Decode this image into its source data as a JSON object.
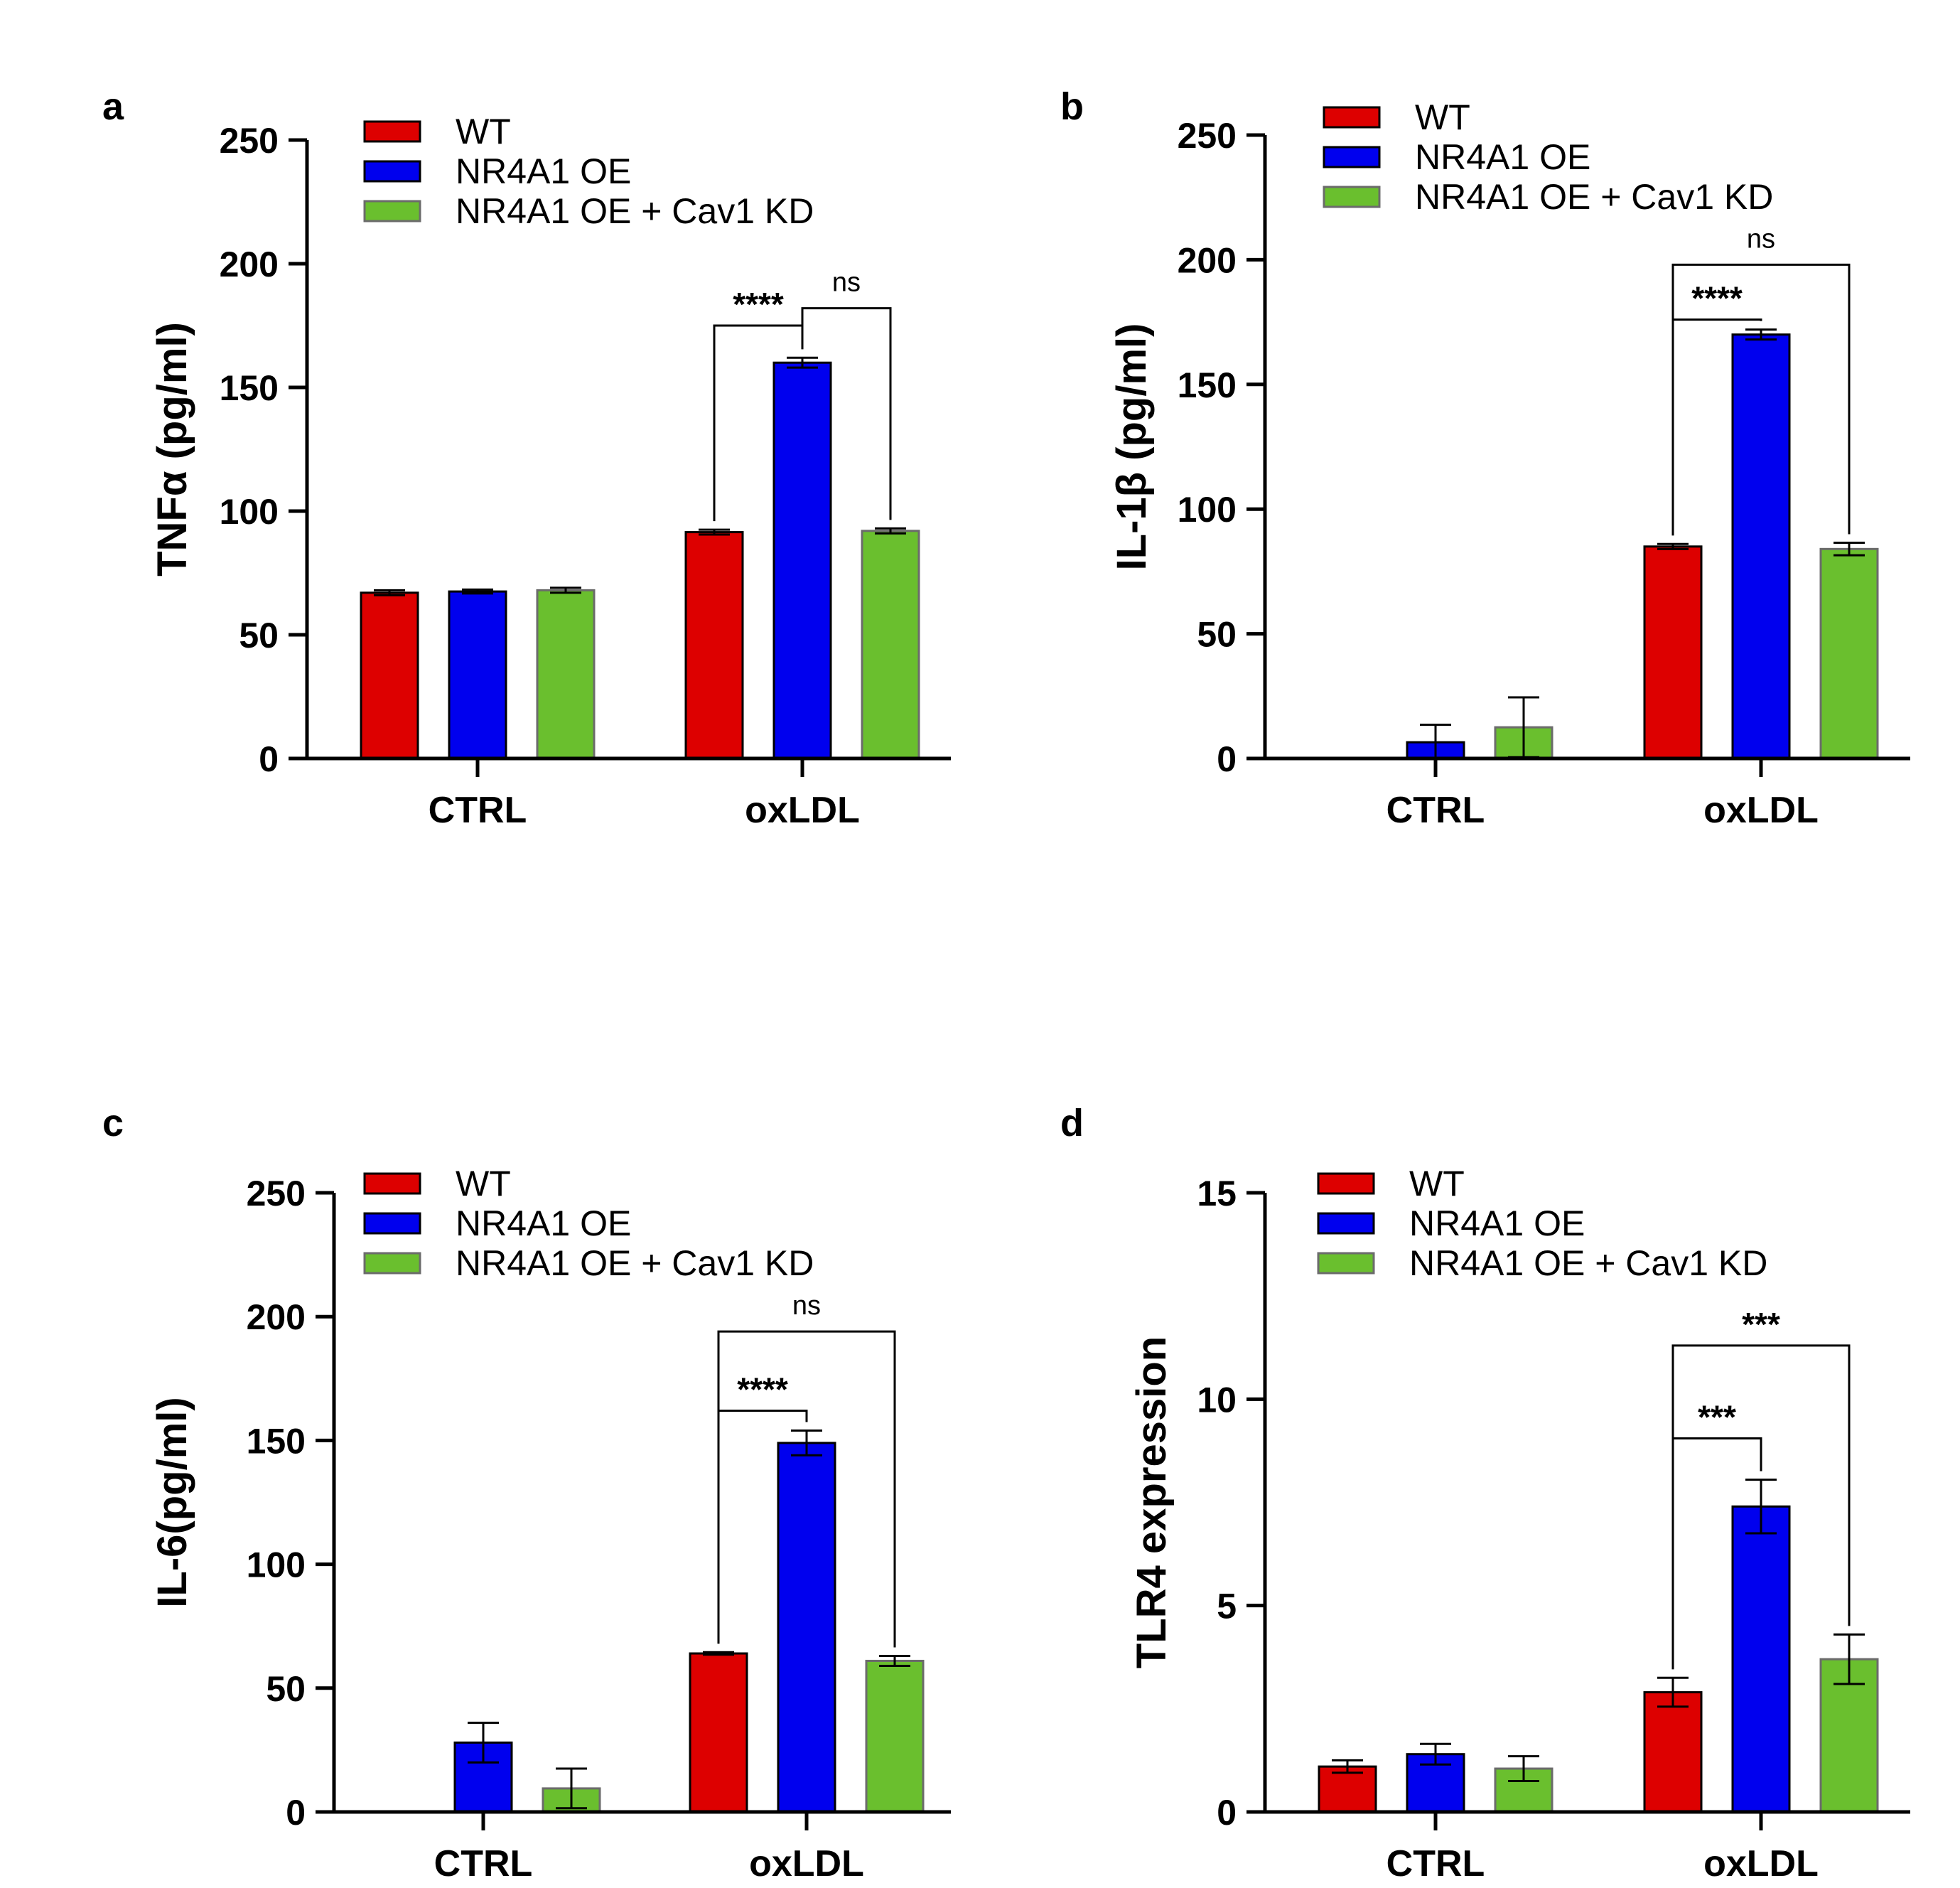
{
  "colors": {
    "wt": "#dd0000",
    "nr4a1_oe": "#0000ee",
    "nr4a1_oe_cav1_kd": "#6abf2e",
    "axis": "#000000"
  },
  "chart_data": [
    {
      "panel": "a",
      "type": "bar",
      "ylabel": "TNFα (pg/ml)",
      "ylim": [
        0,
        250
      ],
      "yticks": [
        0,
        50,
        100,
        150,
        200,
        250
      ],
      "categories": [
        "CTRL",
        "oxLDL"
      ],
      "legend": [
        "WT",
        "NR4A1 OE",
        "NR4A1 OE + Cav1 KD"
      ],
      "series": [
        {
          "name": "WT",
          "values": [
            67,
            91.5
          ],
          "errors": [
            1,
            1
          ]
        },
        {
          "name": "NR4A1 OE",
          "values": [
            67.5,
            160
          ],
          "errors": [
            0.8,
            2
          ]
        },
        {
          "name": "NR4A1 OE + Cav1 KD",
          "values": [
            68,
            92
          ],
          "errors": [
            1,
            1
          ]
        }
      ],
      "annotations": [
        {
          "from": 0,
          "to": 1,
          "label": "****",
          "level": 175
        },
        {
          "from": 1,
          "to": 2,
          "label": "ns",
          "level": 182
        }
      ]
    },
    {
      "panel": "b",
      "type": "bar",
      "ylabel": "IL-1β (pg/ml)",
      "ylim": [
        0,
        250
      ],
      "yticks": [
        0,
        50,
        100,
        150,
        200,
        250
      ],
      "categories": [
        "CTRL",
        "oxLDL"
      ],
      "legend": [
        "WT",
        "NR4A1 OE",
        "NR4A1 OE + Cav1 KD"
      ],
      "series": [
        {
          "name": "WT",
          "values": [
            0,
            85
          ],
          "errors": [
            0,
            1
          ]
        },
        {
          "name": "NR4A1 OE",
          "values": [
            6.5,
            170
          ],
          "errors": [
            7,
            2
          ]
        },
        {
          "name": "NR4A1 OE + Cav1 KD",
          "values": [
            12.5,
            84
          ],
          "errors": [
            12,
            2.5
          ]
        }
      ],
      "annotations": [
        {
          "from": 0,
          "to": 1,
          "label": "****",
          "level": 176
        },
        {
          "from": 0,
          "to": 2,
          "label": "ns",
          "level": 198
        }
      ]
    },
    {
      "panel": "c",
      "type": "bar",
      "ylabel": "IL-6(pg/ml)",
      "ylim": [
        0,
        250
      ],
      "yticks": [
        0,
        50,
        100,
        150,
        200,
        250
      ],
      "categories": [
        "CTRL",
        "oxLDL"
      ],
      "legend": [
        "WT",
        "NR4A1 OE",
        "NR4A1 OE + Cav1 KD"
      ],
      "series": [
        {
          "name": "WT",
          "values": [
            0,
            64
          ],
          "errors": [
            0,
            0.5
          ]
        },
        {
          "name": "NR4A1 OE",
          "values": [
            28,
            149
          ],
          "errors": [
            8,
            5
          ]
        },
        {
          "name": "NR4A1 OE + Cav1 KD",
          "values": [
            9.5,
            61
          ],
          "errors": [
            8,
            2
          ]
        }
      ],
      "annotations": [
        {
          "from": 0,
          "to": 1,
          "label": "****",
          "level": 162
        },
        {
          "from": 0,
          "to": 2,
          "label": "ns",
          "level": 194
        }
      ]
    },
    {
      "panel": "d",
      "type": "bar",
      "ylabel": "TLR4 expression",
      "ylim": [
        0,
        15
      ],
      "yticks": [
        0,
        5,
        10,
        15
      ],
      "categories": [
        "CTRL",
        "oxLDL"
      ],
      "legend": [
        "WT",
        "NR4A1 OE",
        "NR4A1 OE + Cav1 KD"
      ],
      "series": [
        {
          "name": "WT",
          "values": [
            1.1,
            2.9
          ],
          "errors": [
            0.15,
            0.35
          ]
        },
        {
          "name": "NR4A1 OE",
          "values": [
            1.4,
            7.4
          ],
          "errors": [
            0.25,
            0.65
          ]
        },
        {
          "name": "NR4A1 OE + Cav1 KD",
          "values": [
            1.05,
            3.7
          ],
          "errors": [
            0.3,
            0.6
          ]
        }
      ],
      "annotations": [
        {
          "from": 0,
          "to": 1,
          "label": "***",
          "level": 9.05
        },
        {
          "from": 0,
          "to": 2,
          "label": "***",
          "level": 11.3
        }
      ]
    }
  ]
}
